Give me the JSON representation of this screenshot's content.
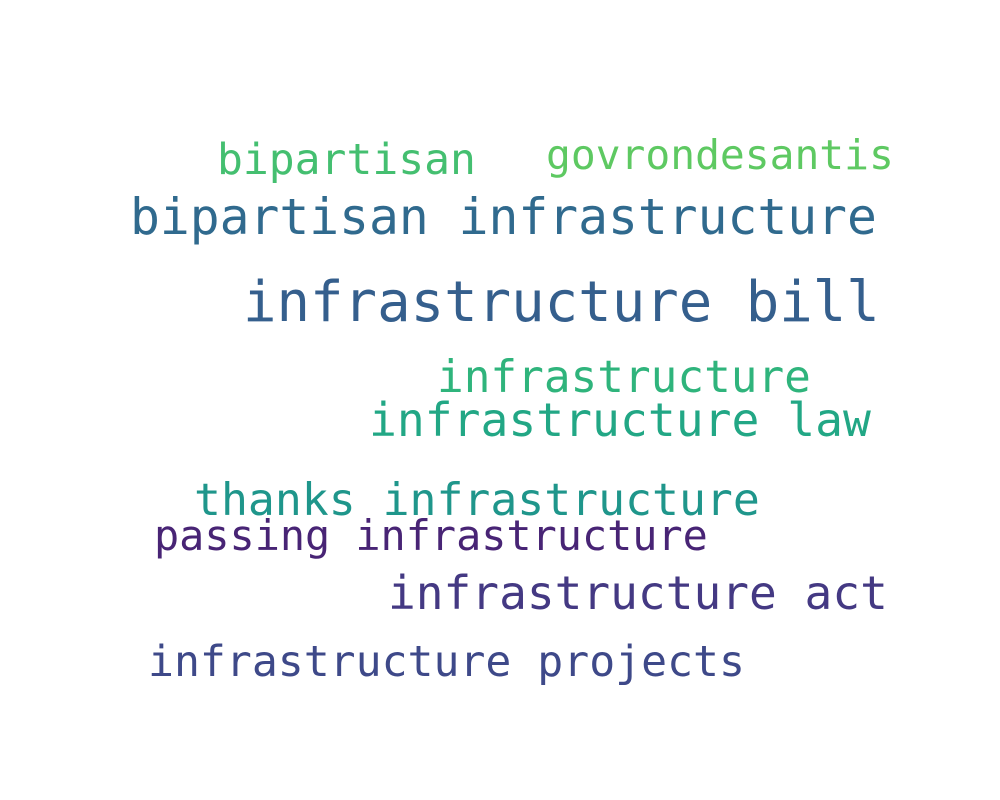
{
  "words": [
    {
      "text": "infrastructure bill",
      "color": "#355f8d"
    },
    {
      "text": "bipartisan infrastructure",
      "color": "#306a8e"
    },
    {
      "text": "infrastructure law",
      "color": "#22a785"
    },
    {
      "text": "infrastructure act",
      "color": "#443983"
    },
    {
      "text": "infrastructure projects",
      "color": "#3e4989"
    },
    {
      "text": "thanks infrastructure",
      "color": "#1f968b"
    },
    {
      "text": "passing infrastructure",
      "color": "#482475"
    },
    {
      "text": "infrastructure",
      "color": "#2fb47c"
    },
    {
      "text": "bipartisan",
      "color": "#44bf70"
    },
    {
      "text": "govrondesantis",
      "color": "#5ec962"
    }
  ]
}
